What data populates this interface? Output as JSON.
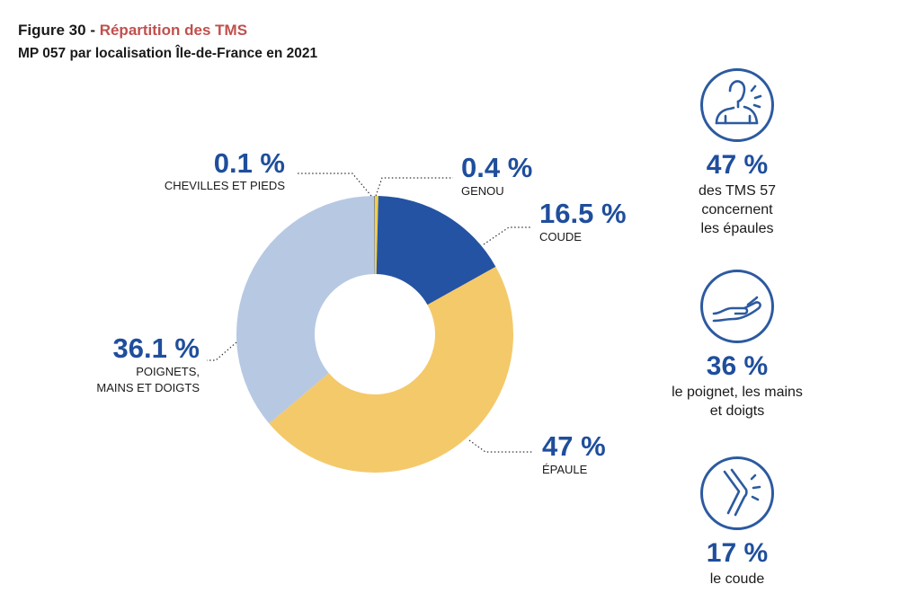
{
  "header": {
    "figure": "Figure 30",
    "separator": " - ",
    "name": "Répartition des TMS",
    "subtitle": "MP 057 par localisation Île-de-France en 2021"
  },
  "chart_data": {
    "type": "pie",
    "donut": true,
    "slices": [
      {
        "pct_label": "0.4 %",
        "label": "GENOU",
        "value": 0.4,
        "color": "#f0d04a"
      },
      {
        "pct_label": "16.5 %",
        "label": "COUDE",
        "value": 16.5,
        "color": "#2553a3"
      },
      {
        "pct_label": "47 %",
        "label": "ÉPAULE",
        "value": 47,
        "color": "#f4c96a"
      },
      {
        "pct_label": "36.1 %",
        "label": "POIGNETS,\nMAINS ET DOIGTS",
        "value": 36.1,
        "color": "#b7c8e3"
      },
      {
        "pct_label": "0.1 %",
        "label": "CHEVILLES ET PIEDS",
        "value": 0.1,
        "color": "#7f7f7f"
      }
    ]
  },
  "side_stats": [
    {
      "icon": "shoulder-pain-icon",
      "value": "47 %",
      "desc": [
        "des TMS 57",
        "concernent",
        "les épaules"
      ]
    },
    {
      "icon": "open-hand-icon",
      "value": "36 %",
      "desc": [
        "le poignet, les mains",
        "et doigts"
      ]
    },
    {
      "icon": "elbow-pain-icon",
      "value": "17 %",
      "desc": [
        "le coude"
      ]
    }
  ],
  "colors": {
    "accent": "#c0504d",
    "primary": "#1f4e9c",
    "icon": "#2c5aa0"
  }
}
